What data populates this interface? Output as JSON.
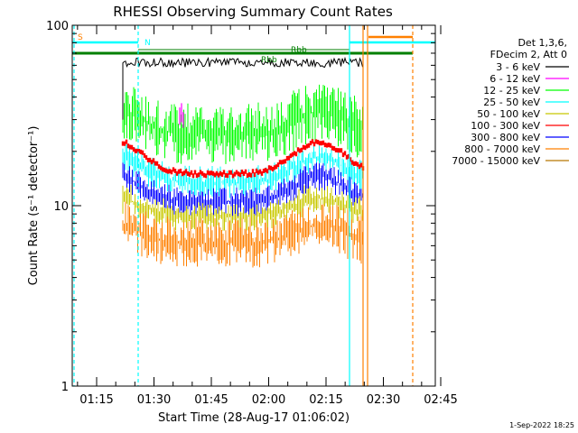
{
  "chart_data": {
    "type": "line",
    "title": "RHESSI Observing Summary Count Rates",
    "xlabel": "Start Time (28-Aug-17 01:06:02)",
    "ylabel": "Count Rate (s⁻¹ detector⁻¹)",
    "y_scale": "log",
    "ylim": [
      1,
      100
    ],
    "y_ticks": [
      1,
      10,
      100
    ],
    "y_tick_labels": [
      "1",
      "10",
      "100"
    ],
    "x_ticks": [
      "01:15",
      "01:30",
      "01:45",
      "02:00",
      "02:15",
      "02:30",
      "02:45"
    ],
    "footer_date": "1-Sep-2022 18:25",
    "legend_header": [
      "Det 1,3,6,",
      "FDecim 2, Att 0"
    ],
    "legend_position": "right",
    "annotations": [
      {
        "text": "S",
        "color": "#ff8000"
      },
      {
        "text": "N",
        "color": "#00ffff"
      },
      {
        "text": "Rbb",
        "color": "#007f00"
      },
      {
        "text": "Rbb",
        "color": "#007f00"
      }
    ],
    "series": [
      {
        "name": "3 - 6 keV",
        "color": "#000000",
        "values": [
          62,
          62
        ]
      },
      {
        "name": "6 - 12 keV",
        "color": "#ff00ff",
        "values": [
          28,
          30
        ]
      },
      {
        "name": "12 - 25 keV",
        "color": "#00ff00",
        "values": [
          30,
          25,
          32
        ]
      },
      {
        "name": "25 - 50 keV",
        "color": "#00ffff",
        "values": [
          18,
          13,
          18
        ]
      },
      {
        "name": "50 - 100 keV",
        "color": "#c8c800",
        "values": [
          11,
          9,
          11
        ]
      },
      {
        "name": "100 - 300 keV",
        "color": "#ff0000",
        "values": [
          22,
          15,
          22
        ]
      },
      {
        "name": "300 - 800 keV",
        "color": "#0000ff",
        "values": [
          14,
          10,
          14
        ]
      },
      {
        "name": "800 - 7000 keV",
        "color": "#ff8000",
        "values": [
          8,
          6,
          7
        ]
      },
      {
        "name": "7000 - 15000 keV",
        "color": "#b87800",
        "values": []
      }
    ]
  }
}
